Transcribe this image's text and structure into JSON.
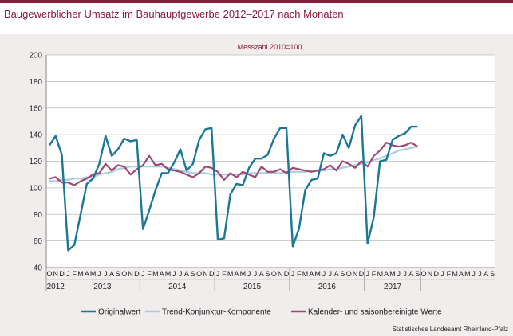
{
  "title": "Baugewerblicher Umsatz im Bauhauptgewerbe 2012–2017 nach Monaten",
  "source": "Statistisches Landesamt Rheinland-Pfalz",
  "colors": {
    "accent": "#8a1c3b",
    "original": "#1a7797",
    "trend": "#a7cde0",
    "adjusted": "#a24673"
  },
  "chart_data": {
    "type": "line",
    "subtitle": "Messzahl 2010=100",
    "ylim": [
      40,
      200
    ],
    "yticks": [
      40,
      60,
      80,
      100,
      120,
      140,
      160,
      180,
      200
    ],
    "month_labels": [
      "O",
      "N",
      "D",
      "J",
      "F",
      "M",
      "A",
      "M",
      "J",
      "J",
      "A",
      "S",
      "O",
      "N",
      "D",
      "J",
      "F",
      "M",
      "A",
      "M",
      "J",
      "J",
      "A",
      "S",
      "O",
      "N",
      "D",
      "J",
      "F",
      "M",
      "A",
      "M",
      "J",
      "J",
      "A",
      "S",
      "O",
      "N",
      "D",
      "J",
      "F",
      "M",
      "A",
      "M",
      "J",
      "J",
      "A",
      "S",
      "O",
      "N",
      "D",
      "J",
      "F",
      "M",
      "A",
      "M",
      "J",
      "J",
      "A",
      "S",
      "O",
      "N",
      "D",
      "J",
      "F",
      "M",
      "A",
      "M",
      "J",
      "J",
      "A",
      "S"
    ],
    "year_labels": [
      {
        "label": "2012",
        "start": 0,
        "end": 2
      },
      {
        "label": "2013",
        "start": 3,
        "end": 14
      },
      {
        "label": "2014",
        "start": 15,
        "end": 26
      },
      {
        "label": "2015",
        "start": 27,
        "end": 38
      },
      {
        "label": "2016",
        "start": 39,
        "end": 50
      },
      {
        "label": "2017",
        "start": 51,
        "end": 59
      }
    ],
    "series": [
      {
        "name": "Originalwert",
        "values": [
          132,
          139,
          125,
          53,
          57,
          80,
          103,
          107,
          118,
          139,
          124,
          129,
          137,
          135,
          136,
          69,
          83,
          98,
          111,
          111,
          119,
          129,
          113,
          118,
          136,
          144,
          145,
          61,
          62,
          95,
          103,
          102,
          115,
          122,
          122,
          125,
          137,
          145,
          145,
          56,
          69,
          98,
          106,
          107,
          126,
          124,
          126,
          140,
          130,
          147,
          154,
          58,
          78,
          120,
          121,
          136,
          139,
          141,
          146,
          146
        ],
        "color": "#1a7797",
        "width": 2.4
      },
      {
        "name": "Trend-Konjunktur-Komponente",
        "values": [
          105,
          105,
          106,
          106,
          107,
          107,
          108,
          108,
          110,
          111,
          112,
          114,
          115,
          116,
          116,
          116,
          116,
          116,
          116,
          115,
          114,
          113,
          112,
          111,
          111,
          111,
          110,
          110,
          110,
          110,
          110,
          110,
          111,
          111,
          111,
          111,
          111,
          111,
          112,
          112,
          112,
          112,
          113,
          113,
          113,
          114,
          114,
          115,
          116,
          117,
          118,
          119,
          121,
          122,
          124,
          126,
          128,
          129,
          130,
          131
        ],
        "color": "#a7cde0",
        "width": 2.2
      },
      {
        "name": "Kalender- und saisonbereinigte Werte",
        "values": [
          107,
          108,
          104,
          104,
          102,
          105,
          107,
          110,
          111,
          118,
          113,
          117,
          116,
          110,
          114,
          117,
          124,
          117,
          118,
          114,
          113,
          112,
          110,
          108,
          111,
          116,
          115,
          112,
          106,
          111,
          108,
          112,
          110,
          108,
          116,
          112,
          112,
          114,
          111,
          115,
          114,
          113,
          112,
          113,
          114,
          117,
          113,
          120,
          118,
          115,
          120,
          116,
          124,
          128,
          134,
          132,
          131,
          132,
          134,
          131
        ],
        "color": "#a24673",
        "width": 2.2
      }
    ]
  }
}
